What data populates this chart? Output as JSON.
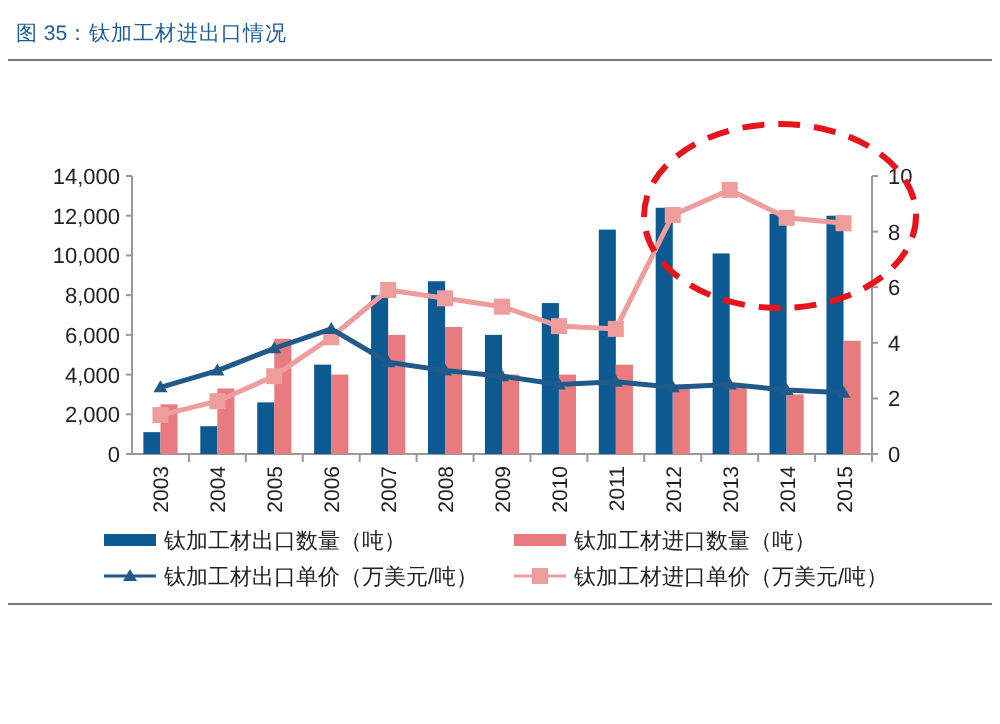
{
  "chart_data": {
    "type": "bar",
    "title": "图 35：钛加工材进出口情况",
    "categories": [
      "2003",
      "2004",
      "2005",
      "2006",
      "2007",
      "2008",
      "2009",
      "2010",
      "2011",
      "2012",
      "2013",
      "2014",
      "2015"
    ],
    "series": [
      {
        "name": "钛加工材出口数量（吨）",
        "color": "#0d5a93",
        "values": [
          1100,
          1400,
          2600,
          4500,
          8000,
          8700,
          6000,
          7600,
          11300,
          12400,
          10100,
          12100,
          12000
        ]
      },
      {
        "name": "钛加工材进口数量（吨）",
        "color": "#e87b7d",
        "values": [
          2500,
          3300,
          5800,
          4000,
          6000,
          6400,
          4000,
          4000,
          4500,
          3500,
          3500,
          3000,
          5700
        ]
      },
      {
        "name": "钛加工材出口单价（万美元/吨）",
        "type": "line",
        "axis": "y2",
        "marker": "triangle",
        "color": "#1f5a8a",
        "values": [
          2.4,
          3.0,
          3.8,
          4.5,
          3.3,
          3.0,
          2.8,
          2.5,
          2.6,
          2.4,
          2.5,
          2.3,
          2.2
        ]
      },
      {
        "name": "钛加工材进口单价（万美元/吨）",
        "type": "line",
        "axis": "y2",
        "marker": "square",
        "color": "#ee9c9c",
        "values": [
          1.4,
          1.9,
          2.8,
          4.2,
          5.9,
          5.6,
          5.3,
          4.6,
          4.5,
          8.6,
          9.5,
          8.5,
          8.3
        ]
      }
    ],
    "ylim": [
      0,
      14000
    ],
    "yticks": [
      0,
      {
        "value": 2000,
        "label": "2,000"
      },
      {
        "value": 4000,
        "label": "4,000"
      },
      {
        "value": 6000,
        "label": "6,000"
      },
      {
        "value": 8000,
        "label": "8,000"
      },
      {
        "value": 10000,
        "label": "10,000"
      },
      {
        "value": 12000,
        "label": "12,000"
      },
      {
        "value": 14000,
        "label": "14,000"
      }
    ],
    "y2lim": [
      0,
      10
    ],
    "y2ticks": [
      0,
      2,
      4,
      6,
      8,
      10
    ],
    "legend": "bottom"
  }
}
